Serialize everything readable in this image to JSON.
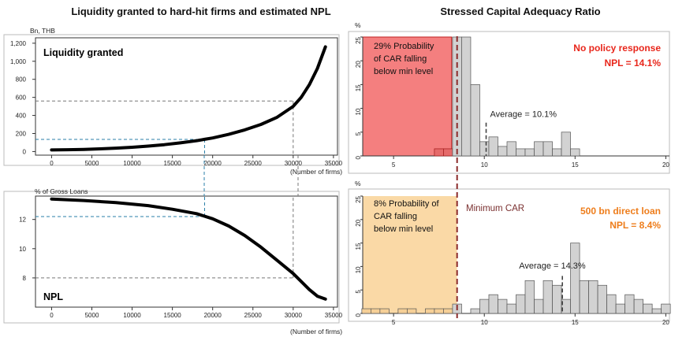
{
  "titles": {
    "left": "Liquidity granted to hard-hit firms and estimated NPL",
    "right": "Stressed Capital Adequacy Ratio"
  },
  "chart_data": [
    {
      "id": "liquidity",
      "type": "line",
      "title": "Liquidity granted",
      "ylabel": "Bn, THB",
      "xlabel": "(Number of firms)",
      "xlim": [
        -2000,
        35500
      ],
      "ylim": [
        -40,
        1260
      ],
      "xticks": [
        0,
        5000,
        10000,
        15000,
        20000,
        25000,
        30000,
        35000
      ],
      "yticks": [
        0,
        200,
        400,
        600,
        800,
        1000,
        1200
      ],
      "ytick_labels": [
        "0",
        "200",
        "400",
        "600",
        "800",
        "1,000",
        "1,200"
      ],
      "x": [
        0,
        2000,
        4000,
        6000,
        8000,
        10000,
        12000,
        14000,
        16000,
        18000,
        19000,
        20000,
        22000,
        24000,
        26000,
        28000,
        30000,
        31000,
        32000,
        33000,
        34000
      ],
      "y": [
        18,
        20,
        24,
        30,
        38,
        47,
        60,
        76,
        96,
        120,
        135,
        150,
        190,
        240,
        300,
        380,
        500,
        600,
        740,
        920,
        1160
      ],
      "guides": [
        {
          "x": 19000,
          "y": 135,
          "color": "#2a7fa8"
        },
        {
          "x": 30000,
          "y": 560,
          "color": "#777777"
        }
      ]
    },
    {
      "id": "npl",
      "type": "line",
      "title": "NPL",
      "ylabel": "% of Gross Loans",
      "xlabel": "(Number of firms)",
      "xlim": [
        -2000,
        35500
      ],
      "ylim": [
        6,
        13.6
      ],
      "xticks": [
        0,
        5000,
        10000,
        15000,
        20000,
        25000,
        30000,
        35000
      ],
      "yticks": [
        8,
        10,
        12
      ],
      "ytick_labels": [
        "8",
        "10",
        "12"
      ],
      "x": [
        0,
        4000,
        8000,
        12000,
        15000,
        18000,
        20000,
        22000,
        24000,
        26000,
        28000,
        30000,
        32000,
        33000,
        34000
      ],
      "y": [
        13.4,
        13.3,
        13.15,
        12.95,
        12.7,
        12.4,
        12.05,
        11.55,
        10.9,
        10.1,
        9.2,
        8.3,
        7.2,
        6.75,
        6.55
      ],
      "guides": [
        {
          "x": 19000,
          "y": 12.2,
          "color": "#2a7fa8"
        },
        {
          "x": 30000,
          "y": 8.0,
          "color": "#777777"
        }
      ]
    },
    {
      "id": "car_no_policy",
      "type": "bar",
      "ylabel": "%",
      "xlim": [
        3.3,
        20.2
      ],
      "ylim": [
        0,
        25
      ],
      "xticks": [
        5,
        10,
        15,
        20
      ],
      "yticks": [
        0,
        5,
        10,
        15,
        20,
        25
      ],
      "bin_width": 0.5,
      "bins": [
        {
          "x": 7.5,
          "v": 1.5
        },
        {
          "x": 8.0,
          "v": 1.5
        },
        {
          "x": 8.5,
          "v": 25
        },
        {
          "x": 9.0,
          "v": 25
        },
        {
          "x": 9.5,
          "v": 15
        },
        {
          "x": 10.0,
          "v": 3
        },
        {
          "x": 10.5,
          "v": 4
        },
        {
          "x": 11.0,
          "v": 2
        },
        {
          "x": 11.5,
          "v": 3
        },
        {
          "x": 12.0,
          "v": 1.5
        },
        {
          "x": 12.5,
          "v": 1.5
        },
        {
          "x": 13.0,
          "v": 3
        },
        {
          "x": 13.5,
          "v": 3
        },
        {
          "x": 14.0,
          "v": 1.5
        },
        {
          "x": 14.5,
          "v": 5
        },
        {
          "x": 15.0,
          "v": 1.5
        }
      ],
      "shaded_region": {
        "from": 3.3,
        "to": 8.2,
        "color": "#f47f7f"
      },
      "min_car": 8.5,
      "average": 10.1,
      "average_label": "Average = 10.1%",
      "prob_text": [
        "29% Probability",
        "of CAR falling",
        "below min level"
      ],
      "scenario": "No policy response",
      "npl_text": "NPL = 14.1%",
      "scenario_color": "#e8261b"
    },
    {
      "id": "car_direct_loan",
      "type": "bar",
      "ylabel": "%",
      "xlim": [
        3.3,
        20.2
      ],
      "ylim": [
        0,
        25
      ],
      "xticks": [
        5,
        10,
        15,
        20
      ],
      "yticks": [
        0,
        5,
        10,
        15,
        20,
        25
      ],
      "bin_width": 0.5,
      "bins": [
        {
          "x": 3.5,
          "v": 1
        },
        {
          "x": 4.0,
          "v": 1
        },
        {
          "x": 4.5,
          "v": 1
        },
        {
          "x": 5.5,
          "v": 1
        },
        {
          "x": 6.0,
          "v": 1
        },
        {
          "x": 7.0,
          "v": 1
        },
        {
          "x": 7.5,
          "v": 1
        },
        {
          "x": 8.0,
          "v": 1
        },
        {
          "x": 8.5,
          "v": 2
        },
        {
          "x": 9.5,
          "v": 1
        },
        {
          "x": 10.0,
          "v": 3
        },
        {
          "x": 10.5,
          "v": 4
        },
        {
          "x": 11.0,
          "v": 3
        },
        {
          "x": 11.5,
          "v": 2
        },
        {
          "x": 12.0,
          "v": 4
        },
        {
          "x": 12.5,
          "v": 7
        },
        {
          "x": 13.0,
          "v": 3
        },
        {
          "x": 13.5,
          "v": 7
        },
        {
          "x": 14.0,
          "v": 6
        },
        {
          "x": 14.5,
          "v": 3
        },
        {
          "x": 15.0,
          "v": 15
        },
        {
          "x": 15.5,
          "v": 7
        },
        {
          "x": 16.0,
          "v": 7
        },
        {
          "x": 16.5,
          "v": 6
        },
        {
          "x": 17.0,
          "v": 4
        },
        {
          "x": 17.5,
          "v": 2
        },
        {
          "x": 18.0,
          "v": 4
        },
        {
          "x": 18.5,
          "v": 3
        },
        {
          "x": 19.0,
          "v": 2
        },
        {
          "x": 19.5,
          "v": 1
        },
        {
          "x": 20.0,
          "v": 2
        }
      ],
      "shaded_region": {
        "from": 3.3,
        "to": 8.5,
        "color": "#fad9a6"
      },
      "min_car": 8.5,
      "average": 14.3,
      "average_label": "Average = 14.3%",
      "prob_text": [
        "8% Probability of",
        "CAR falling",
        "below min level"
      ],
      "scenario": "500 bn direct loan",
      "npl_text": "NPL = 8.4%",
      "scenario_color": "#ee7d1b",
      "min_car_label": "Minimum CAR"
    }
  ]
}
